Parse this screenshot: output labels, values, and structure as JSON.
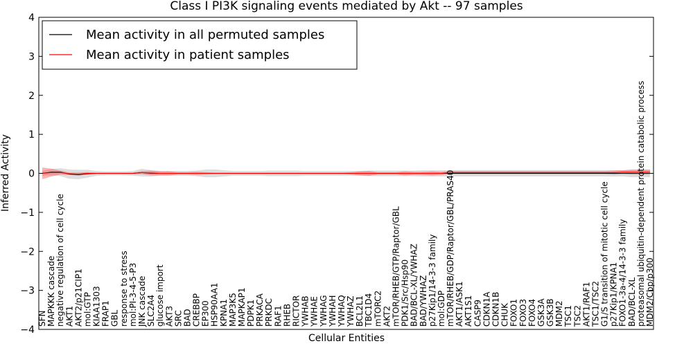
{
  "chart_data": {
    "type": "line",
    "title": "Class I PI3K signaling events mediated by Akt -- 97 samples",
    "xlabel": "Cellular Entities",
    "ylabel": "Inferred Activity",
    "ylim": [
      -4,
      4
    ],
    "yticks": [
      "−4",
      "−3",
      "−2",
      "−1",
      "0",
      "1",
      "2",
      "3",
      "4"
    ],
    "grid": false,
    "legend_position": "top-left",
    "categories": [
      "SFN",
      "MAPKKK cascade",
      "negative regulation of cell cycle",
      "AKT1",
      "AKT2/p21CIP1",
      "mol:GTP",
      "KIAA1303",
      "FRAP1",
      "GBL",
      "response to stress",
      "mol:PI-3-4-5-P3",
      "JNK cascade",
      "SLC2A4",
      "glucose import",
      "AKT3",
      "SRC",
      "BAD",
      "CREBBP",
      "EP300",
      "HSP90AA1",
      "KPNA1",
      "MAP3K5",
      "MAPKAP1",
      "PDPK1",
      "PRKACA",
      "PRKDC",
      "RAF1",
      "RHEB",
      "RICTOR",
      "YWHAB",
      "YWHAE",
      "YWHAG",
      "YWHAH",
      "YWHAQ",
      "YWHAZ",
      "BCL2L1",
      "TBC1D4",
      "mTORC2",
      "AKT2",
      "mTOR/RHEB/GTP/Raptor/GBL",
      "PDK1/Src/Hsp90",
      "BAD/BCL-XL/YWHAZ",
      "BAD/YWHAZ",
      "p27Kip1/14-3-3 family",
      "mol:GDP",
      "mTOR/RHEB/GDP/Raptor/GBL/PRAS40",
      "AKT1/ASK1",
      "AKT1S1",
      "CASP9",
      "CDKN1A",
      "CDKN1B",
      "CHUK",
      "FOXO1",
      "FOXO3",
      "FOXO4",
      "GSK3A",
      "GSK3B",
      "MDM2",
      "TSC1",
      "TSC2",
      "AKT1/RAF1",
      "TSC1/TSC2",
      "G1/S transition of mitotic cell cycle",
      "p27Kip1/KPNA1",
      "FOXO1-3a-4/14-3-3 family",
      "BAD/BCL-XL",
      "proteasomal ubiquitin-dependent protein catabolic process",
      "MDM2/Cbp/p300"
    ],
    "series": [
      {
        "name": "Mean activity in all permuted samples",
        "color": "#000000",
        "values": [
          0.0,
          0.03,
          0.03,
          -0.02,
          -0.03,
          -0.01,
          0.0,
          0.0,
          0.0,
          0.0,
          0.0,
          0.02,
          0.0,
          0.0,
          0.0,
          0.0,
          0.0,
          0.0,
          0.0,
          0.0,
          0.0,
          0.0,
          0.0,
          0.0,
          0.0,
          0.0,
          0.0,
          0.0,
          0.0,
          0.0,
          0.0,
          0.0,
          0.0,
          0.0,
          0.0,
          0.0,
          0.0,
          0.0,
          0.0,
          0.0,
          0.0,
          0.0,
          0.0,
          0.0,
          0.0,
          0.0,
          0.0,
          0.0,
          0.0,
          0.0,
          0.0,
          0.0,
          0.0,
          0.0,
          0.0,
          0.0,
          0.0,
          0.0,
          0.0,
          0.0,
          0.0,
          0.0,
          0.0,
          0.0,
          0.0,
          0.0,
          0.0,
          0.0
        ],
        "band": [
          0.06,
          0.08,
          0.1,
          0.12,
          0.12,
          0.1,
          0.06,
          0.05,
          0.05,
          0.05,
          0.06,
          0.1,
          0.08,
          0.06,
          0.06,
          0.06,
          0.06,
          0.07,
          0.1,
          0.1,
          0.08,
          0.06,
          0.06,
          0.06,
          0.06,
          0.07,
          0.07,
          0.07,
          0.07,
          0.06,
          0.06,
          0.06,
          0.06,
          0.06,
          0.06,
          0.06,
          0.07,
          0.07,
          0.07,
          0.07,
          0.07,
          0.07,
          0.08,
          0.08,
          0.08,
          0.08,
          0.08,
          0.08,
          0.08,
          0.08,
          0.08,
          0.08,
          0.08,
          0.08,
          0.08,
          0.08,
          0.08,
          0.08,
          0.08,
          0.08,
          0.08,
          0.08,
          0.08,
          0.08,
          0.08,
          0.1,
          0.1,
          0.1
        ]
      },
      {
        "name": "Mean activity in patient samples",
        "color": "#ff0000",
        "values": [
          0.0,
          0.02,
          0.02,
          -0.01,
          -0.02,
          0.0,
          0.0,
          0.0,
          0.0,
          0.0,
          0.0,
          0.02,
          0.01,
          0.0,
          0.0,
          0.0,
          0.0,
          0.0,
          0.0,
          0.0,
          0.0,
          0.0,
          0.0,
          0.0,
          0.0,
          0.0,
          0.0,
          0.0,
          0.0,
          0.0,
          0.0,
          0.0,
          0.0,
          0.0,
          0.0,
          0.0,
          0.0,
          0.0,
          0.0,
          0.0,
          0.0,
          0.0,
          0.0,
          0.0,
          0.0,
          0.02,
          0.02,
          0.02,
          0.02,
          0.02,
          0.02,
          0.02,
          0.02,
          0.02,
          0.02,
          0.02,
          0.02,
          0.02,
          0.02,
          0.02,
          0.02,
          0.02,
          0.02,
          0.02,
          0.03,
          0.03,
          0.03,
          0.03
        ],
        "band": [
          0.15,
          0.1,
          0.05,
          0.03,
          0.04,
          0.03,
          0.02,
          0.02,
          0.02,
          0.02,
          0.02,
          0.04,
          0.06,
          0.05,
          0.05,
          0.03,
          0.03,
          0.04,
          0.03,
          0.02,
          0.02,
          0.02,
          0.02,
          0.02,
          0.02,
          0.02,
          0.02,
          0.02,
          0.02,
          0.02,
          0.02,
          0.02,
          0.02,
          0.02,
          0.03,
          0.05,
          0.06,
          0.03,
          0.03,
          0.03,
          0.05,
          0.04,
          0.04,
          0.05,
          0.04,
          0.04,
          0.04,
          0.04,
          0.04,
          0.04,
          0.04,
          0.04,
          0.04,
          0.04,
          0.04,
          0.04,
          0.04,
          0.04,
          0.04,
          0.04,
          0.04,
          0.04,
          0.04,
          0.05,
          0.05,
          0.06,
          0.06,
          0.06
        ]
      }
    ]
  }
}
